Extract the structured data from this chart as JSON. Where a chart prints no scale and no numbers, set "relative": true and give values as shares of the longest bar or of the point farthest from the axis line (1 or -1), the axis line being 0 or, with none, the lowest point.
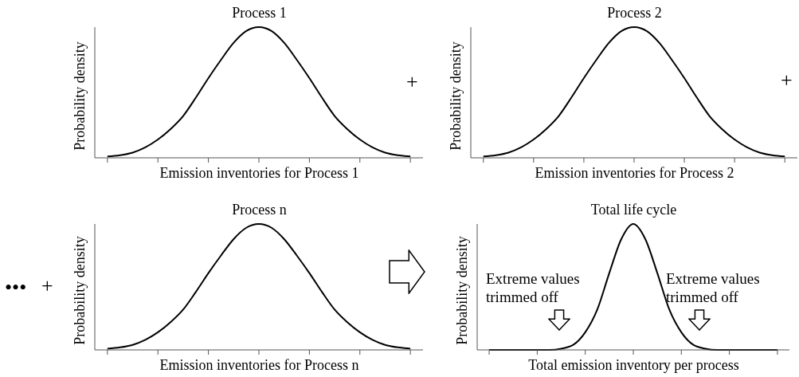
{
  "chart_data": [
    {
      "type": "line",
      "title": "Process 1",
      "xlabel": "Emission inventories for Process 1",
      "ylabel": "Probability density",
      "relative": true,
      "categories": [
        null,
        null,
        null,
        null,
        null,
        null,
        null,
        null,
        null,
        null,
        null,
        null,
        null,
        null,
        null,
        null,
        null,
        null,
        null,
        null,
        null,
        null,
        null,
        null,
        null
      ],
      "series": [
        {
          "color": "#000000",
          "values": [
            0.01,
            0.02,
            0.04,
            0.08,
            0.14,
            0.22,
            0.32,
            0.46,
            0.61,
            0.75,
            0.88,
            0.97,
            1,
            0.97,
            0.88,
            0.75,
            0.61,
            0.46,
            0.32,
            0.22,
            0.14,
            0.08,
            0.04,
            0.02,
            0.01
          ]
        }
      ],
      "annotations": [
        "+"
      ]
    },
    {
      "type": "line",
      "title": "Process 2",
      "xlabel": "Emission inventories for Process 2",
      "ylabel": "Probability density",
      "relative": true,
      "categories": [
        null,
        null,
        null,
        null,
        null,
        null,
        null,
        null,
        null,
        null,
        null,
        null,
        null,
        null,
        null,
        null,
        null,
        null,
        null,
        null,
        null,
        null,
        null,
        null,
        null
      ],
      "series": [
        {
          "color": "#000000",
          "values": [
            0.01,
            0.02,
            0.04,
            0.08,
            0.14,
            0.22,
            0.32,
            0.46,
            0.61,
            0.75,
            0.88,
            0.97,
            1,
            0.97,
            0.88,
            0.75,
            0.61,
            0.46,
            0.32,
            0.22,
            0.14,
            0.08,
            0.04,
            0.02,
            0.01
          ]
        }
      ],
      "annotations": [
        "+"
      ]
    },
    {
      "type": "line",
      "title": "Process n",
      "xlabel": "Emission inventories for Process n",
      "ylabel": "Probability density",
      "relative": true,
      "categories": [
        null,
        null,
        null,
        null,
        null,
        null,
        null,
        null,
        null,
        null,
        null,
        null,
        null,
        null,
        null,
        null,
        null,
        null,
        null,
        null,
        null,
        null,
        null,
        null,
        null
      ],
      "series": [
        {
          "color": "#000000",
          "values": [
            0.01,
            0.02,
            0.04,
            0.08,
            0.14,
            0.22,
            0.32,
            0.46,
            0.61,
            0.75,
            0.88,
            0.97,
            1,
            0.97,
            0.88,
            0.75,
            0.61,
            0.46,
            0.32,
            0.22,
            0.14,
            0.08,
            0.04,
            0.02,
            0.01
          ]
        }
      ],
      "annotations": [
        "•••",
        "+"
      ]
    },
    {
      "type": "line",
      "title": "Total life cycle",
      "xlabel": "Total emission inventory per process",
      "ylabel": "Probability density",
      "relative": true,
      "categories": [
        null,
        null,
        null,
        null,
        null,
        null,
        null,
        null,
        null,
        null,
        null,
        null,
        null,
        null,
        null,
        null,
        null,
        null,
        null,
        null,
        null,
        null,
        null,
        null,
        null
      ],
      "series": [
        {
          "color": "#000000",
          "values": [
            0,
            0,
            0,
            0,
            0,
            0,
            0.01,
            0.04,
            0.14,
            0.32,
            0.61,
            0.88,
            1,
            0.88,
            0.61,
            0.32,
            0.14,
            0.04,
            0.01,
            0,
            0,
            0,
            0,
            0,
            0
          ]
        }
      ],
      "annotations": [
        "Extreme values trimmed off",
        "Extreme values trimmed off"
      ]
    }
  ]
}
